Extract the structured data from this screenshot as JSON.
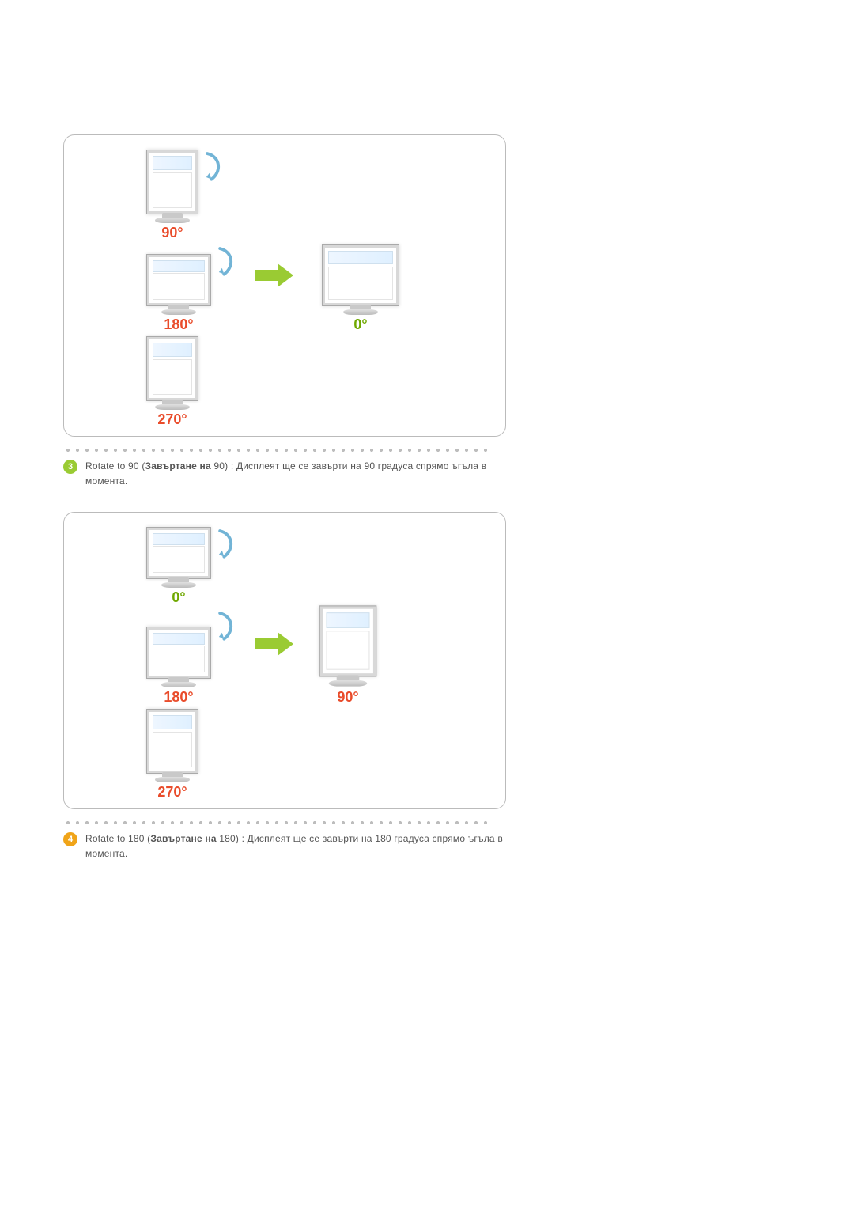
{
  "section3": {
    "bullet_number": "3",
    "bullet_color": "#9acb33",
    "text_prefix": "Rotate to 90 (",
    "text_bold": "Завъртане на",
    "text_bold_value": " 90",
    "text_suffix": ") : Дисплеят ще се завърти на 90 градуса спрямо ъгъла в момента.",
    "figure": {
      "top_label": "90°",
      "mid_left_label": "180°",
      "mid_right_label": "0°",
      "bottom_label": "270°",
      "label_color": "#e94c2b",
      "zero_label_color": "#6fa800",
      "arrow_color": "#72b4d6",
      "big_arrow_color": "#9acb33"
    }
  },
  "section4": {
    "bullet_number": "4",
    "bullet_color": "#f0a418",
    "text_prefix": "Rotate to 180 (",
    "text_bold": "Завъртане на",
    "text_bold_value": " 180",
    "text_suffix": ") : Дисплеят ще се завърти на 180 градуса спрямо ъгъла в момента.",
    "figure": {
      "top_label": "0°",
      "mid_left_label": "180°",
      "mid_right_label": "90°",
      "bottom_label": "270°",
      "label_color": "#e94c2b",
      "zero_label_color": "#6fa800",
      "arrow_color": "#72b4d6",
      "big_arrow_color": "#9acb33"
    }
  },
  "thumb_colors": [
    "#69c0a6",
    "#2e79b5",
    "#8fbc4e",
    "#efd257",
    "#d47ab0",
    "#6e95c9",
    "#9ad0e6",
    "#c2c2c2"
  ]
}
